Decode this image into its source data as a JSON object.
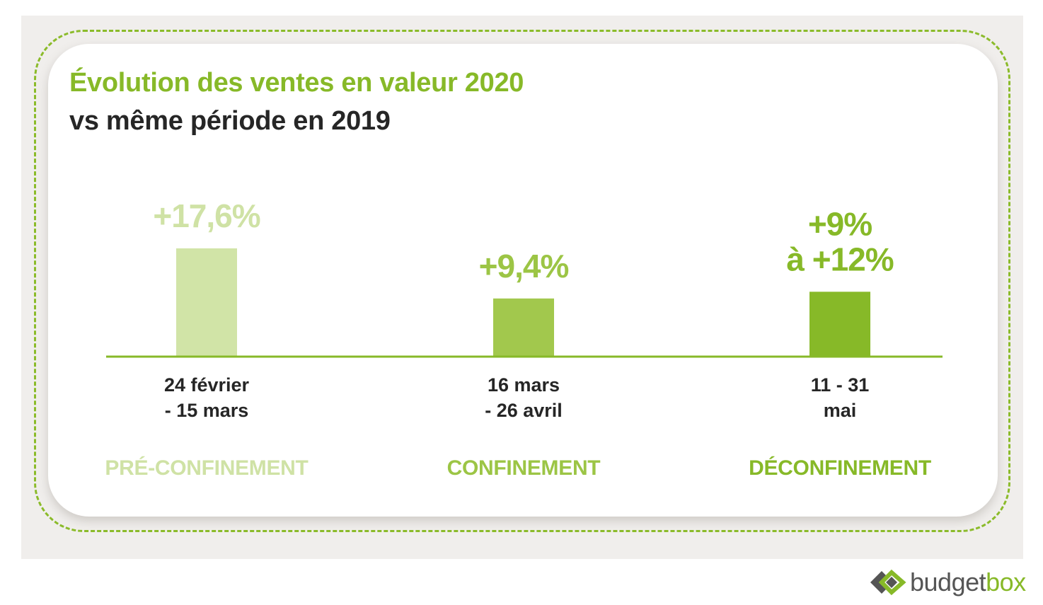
{
  "chart_data": {
    "type": "bar",
    "title": "Évolution des ventes en valeur 2020",
    "subtitle": "vs même période en 2019",
    "categories": [
      "24 février - 15 mars",
      "16 mars - 26 avril",
      "11 - 31 mai"
    ],
    "values": [
      17.6,
      9.4,
      10.5
    ],
    "value_range": [
      null,
      null,
      [
        9,
        12
      ]
    ],
    "unit": "%",
    "data_labels": [
      [
        "+17,6%"
      ],
      [
        "+9,4%"
      ],
      [
        "+9%",
        "à +12%"
      ]
    ],
    "period_labels": [
      [
        "24 février",
        "- 15 mars"
      ],
      [
        "16 mars",
        "- 26 avril"
      ],
      [
        "11 - 31",
        "mai"
      ]
    ],
    "phases": [
      "PRÉ-CONFINEMENT",
      "CONFINEMENT",
      "DÉCONFINEMENT"
    ],
    "colors": [
      "#d1e4a7",
      "#a2c84d",
      "#87b928"
    ],
    "label_colors": [
      "#cfe2a5",
      "#9cc545",
      "#87b928"
    ],
    "axis_color": "#87b928",
    "ylim": [
      0,
      17.6
    ],
    "grid": false,
    "legend": "none"
  },
  "logo": {
    "text_plain": "budget",
    "text_accent": "box",
    "accent_color": "#87b928"
  }
}
